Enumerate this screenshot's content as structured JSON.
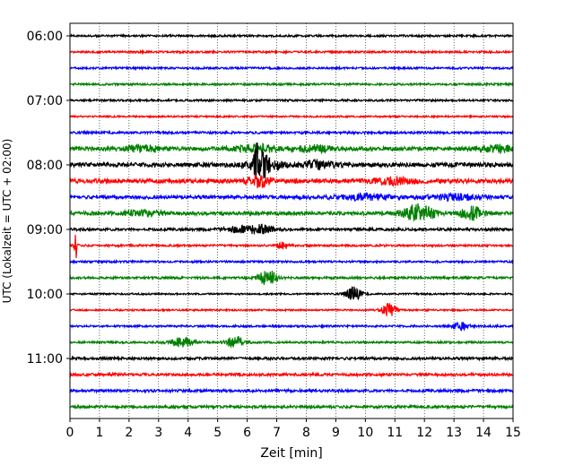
{
  "chart_data": {
    "type": "line",
    "title": "",
    "xlabel": "Zeit  [min]",
    "ylabel": "UTC (Lokalzeit = UTC + 02:00)",
    "xlim": [
      0,
      15
    ],
    "x_ticks": [
      0,
      1,
      2,
      3,
      4,
      5,
      6,
      7,
      8,
      9,
      10,
      11,
      12,
      13,
      14,
      15
    ],
    "y_tick_labels": [
      "06:00",
      "07:00",
      "08:00",
      "09:00",
      "10:00",
      "11:00"
    ],
    "grid": true,
    "line_interval_minutes": 15,
    "trace_colors": [
      "#000000",
      "#ff0000",
      "#0000ff",
      "#008000"
    ],
    "traces": [
      {
        "start": "06:00",
        "noise": 0.6,
        "events": []
      },
      {
        "start": "06:15",
        "noise": 0.6,
        "events": []
      },
      {
        "start": "06:30",
        "noise": 0.6,
        "events": []
      },
      {
        "start": "06:45",
        "noise": 0.6,
        "events": []
      },
      {
        "start": "07:00",
        "noise": 0.6,
        "events": []
      },
      {
        "start": "07:15",
        "noise": 0.5,
        "events": []
      },
      {
        "start": "07:30",
        "noise": 0.7,
        "events": []
      },
      {
        "start": "07:45",
        "noise": 1.2,
        "events": [
          {
            "t": 2.5,
            "amp": 3,
            "dur": 0.6
          },
          {
            "t": 6.4,
            "amp": 4,
            "dur": 0.8
          },
          {
            "t": 8.3,
            "amp": 3,
            "dur": 0.6
          },
          {
            "t": 14.5,
            "amp": 3,
            "dur": 0.6
          }
        ]
      },
      {
        "start": "08:00",
        "noise": 1.3,
        "events": [
          {
            "t": 6.4,
            "amp": 28,
            "dur": 0.15
          },
          {
            "t": 6.6,
            "amp": 8,
            "dur": 0.5
          },
          {
            "t": 8.4,
            "amp": 4,
            "dur": 0.5
          }
        ]
      },
      {
        "start": "08:15",
        "noise": 1.3,
        "events": [
          {
            "t": 6.4,
            "amp": 6,
            "dur": 0.4
          },
          {
            "t": 11.0,
            "amp": 3,
            "dur": 0.8
          }
        ]
      },
      {
        "start": "08:30",
        "noise": 1.0,
        "events": [
          {
            "t": 10.0,
            "amp": 3,
            "dur": 1.0
          },
          {
            "t": 13.0,
            "amp": 3,
            "dur": 0.8
          }
        ]
      },
      {
        "start": "08:45",
        "noise": 1.1,
        "events": [
          {
            "t": 11.8,
            "amp": 10,
            "dur": 0.5
          },
          {
            "t": 13.6,
            "amp": 7,
            "dur": 0.4
          },
          {
            "t": 2.5,
            "amp": 3,
            "dur": 0.6
          }
        ]
      },
      {
        "start": "09:00",
        "noise": 0.8,
        "events": [
          {
            "t": 5.8,
            "amp": 3,
            "dur": 0.5
          },
          {
            "t": 6.5,
            "amp": 4,
            "dur": 0.4
          }
        ]
      },
      {
        "start": "09:15",
        "noise": 0.6,
        "events": [
          {
            "t": 0.2,
            "amp": 16,
            "dur": 0.05
          },
          {
            "t": 7.2,
            "amp": 4,
            "dur": 0.2
          }
        ]
      },
      {
        "start": "09:30",
        "noise": 0.6,
        "events": []
      },
      {
        "start": "09:45",
        "noise": 0.7,
        "events": [
          {
            "t": 6.7,
            "amp": 9,
            "dur": 0.3
          }
        ]
      },
      {
        "start": "10:00",
        "noise": 0.5,
        "events": [
          {
            "t": 9.6,
            "amp": 8,
            "dur": 0.25
          }
        ]
      },
      {
        "start": "10:15",
        "noise": 0.5,
        "events": [
          {
            "t": 10.8,
            "amp": 7,
            "dur": 0.25
          }
        ]
      },
      {
        "start": "10:30",
        "noise": 0.6,
        "events": [
          {
            "t": 13.2,
            "amp": 4,
            "dur": 0.25
          }
        ]
      },
      {
        "start": "10:45",
        "noise": 0.6,
        "events": [
          {
            "t": 3.8,
            "amp": 5,
            "dur": 0.4
          },
          {
            "t": 5.6,
            "amp": 7,
            "dur": 0.3
          }
        ]
      },
      {
        "start": "11:00",
        "noise": 0.8,
        "events": []
      },
      {
        "start": "11:15",
        "noise": 0.8,
        "events": []
      },
      {
        "start": "11:30",
        "noise": 0.8,
        "events": []
      },
      {
        "start": "11:45",
        "noise": 0.8,
        "events": []
      }
    ]
  }
}
